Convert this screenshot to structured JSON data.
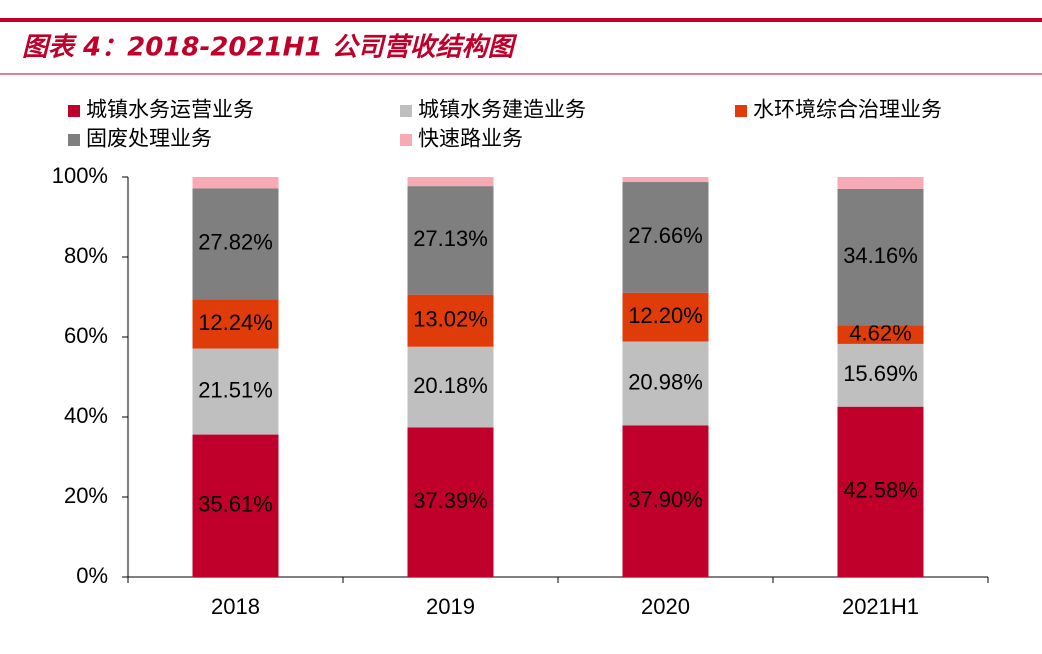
{
  "chart_data": {
    "type": "stacked_bar",
    "title": "图表 4：2018-2021H1 公司营收结构图",
    "categories": [
      "2018",
      "2019",
      "2020",
      "2021H1"
    ],
    "series": [
      {
        "name": "城镇水务运营业务",
        "color": "#c0002a",
        "values": [
          35.61,
          37.39,
          37.9,
          42.58
        ],
        "value_labels": [
          "35.61%",
          "37.39%",
          "37.90%",
          "42.58%"
        ]
      },
      {
        "name": "城镇水务建造业务",
        "color": "#bfbfbf",
        "values": [
          21.51,
          20.18,
          20.98,
          15.69
        ],
        "value_labels": [
          "21.51%",
          "20.18%",
          "20.98%",
          "15.69%"
        ]
      },
      {
        "name": "水环境综合治理业务",
        "color": "#e03c0a",
        "values": [
          12.24,
          13.02,
          12.2,
          4.62
        ],
        "value_labels": [
          "12.24%",
          "13.02%",
          "12.20%",
          "4.62%"
        ]
      },
      {
        "name": "固废处理业务",
        "color": "#7f7f7f",
        "values": [
          27.82,
          27.13,
          27.66,
          34.16
        ],
        "value_labels": [
          "27.82%",
          "27.13%",
          "27.66%",
          "34.16%"
        ]
      },
      {
        "name": "快速路业务",
        "color": "#f7aab3",
        "values": [
          2.82,
          2.28,
          1.26,
          2.95
        ]
      }
    ],
    "ylim": [
      0,
      100
    ],
    "yticks": [
      {
        "value": 0,
        "label": "0%"
      },
      {
        "value": 20,
        "label": "20%"
      },
      {
        "value": 40,
        "label": "40%"
      },
      {
        "value": 60,
        "label": "60%"
      },
      {
        "value": 80,
        "label": "80%"
      },
      {
        "value": 100,
        "label": "100%"
      }
    ]
  }
}
